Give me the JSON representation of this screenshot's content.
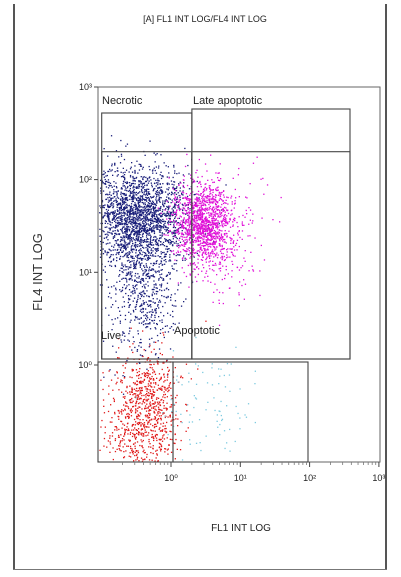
{
  "chart_data": {
    "type": "scatter",
    "title": "[A] FL1 INT LOG/FL4 INT LOG",
    "xlabel": "FL1 INT LOG",
    "ylabel": "FL4 INT LOG",
    "x_scale": "log",
    "y_scale": "log",
    "xlim": [
      0.1,
      1000
    ],
    "ylim": [
      1,
      1000
    ],
    "x_ticks": [
      {
        "value": 1,
        "label": "10⁰"
      },
      {
        "value": 10,
        "label": "10¹"
      },
      {
        "value": 100,
        "label": "10²"
      },
      {
        "value": 1000,
        "label": "10³"
      }
    ],
    "y_ticks": [
      {
        "value": 1,
        "label": "10⁰"
      },
      {
        "value": 10,
        "label": "10¹"
      },
      {
        "value": 100,
        "label": "10²"
      },
      {
        "value": 1000,
        "label": "10³"
      }
    ],
    "gates": [
      {
        "name": "Necrotic",
        "x_range": [
          0.1,
          2
        ],
        "y_range": [
          200,
          1000
        ]
      },
      {
        "name": "Late apoptotic",
        "x_range": [
          2,
          800
        ],
        "y_range": [
          200,
          1000
        ]
      },
      {
        "name": "Live",
        "x_range": [
          0.1,
          2
        ],
        "y_range": [
          1,
          200
        ]
      },
      {
        "name": "Apoptotic",
        "x_range": [
          2,
          800
        ],
        "y_range": [
          1,
          200
        ]
      },
      {
        "name": "",
        "x_range": [
          0.1,
          1.1
        ],
        "y_range": [
          1,
          0.1
        ]
      },
      {
        "name": "",
        "x_range": [
          1.1,
          85
        ],
        "y_range": [
          1,
          0.1
        ]
      }
    ],
    "series": [
      {
        "color": "#1a1f7a",
        "clusters": [
          {
            "count": 2100,
            "cx": 0.35,
            "cy": 40,
            "sx_dec": 0.35,
            "sy_dec": 0.28
          },
          {
            "count": 450,
            "cx": 0.45,
            "cy": 6,
            "sx_dec": 0.22,
            "sy_dec": 0.35
          },
          {
            "count": 150,
            "cx": 0.2,
            "cy": 10,
            "sx_dec": 0.3,
            "sy_dec": 0.5
          }
        ]
      },
      {
        "color": "#e010d8",
        "clusters": [
          {
            "count": 1200,
            "cx": 2.8,
            "cy": 35,
            "sx_dec": 0.22,
            "sy_dec": 0.22
          },
          {
            "count": 250,
            "cx": 5,
            "cy": 25,
            "sx_dec": 0.3,
            "sy_dec": 0.35
          }
        ]
      },
      {
        "color": "#e01818",
        "clusters": [
          {
            "count": 700,
            "cx": 0.38,
            "cy": 0.25,
            "sx_dec": 0.28,
            "sy_dec": 0.35
          },
          {
            "count": 200,
            "cx": 0.55,
            "cy": 0.5,
            "sx_dec": 0.2,
            "sy_dec": 0.25
          }
        ]
      },
      {
        "color": "#7ecbe0",
        "clusters": [
          {
            "count": 90,
            "cx": 3,
            "cy": 0.35,
            "sx_dec": 0.3,
            "sy_dec": 0.3
          }
        ]
      }
    ]
  }
}
